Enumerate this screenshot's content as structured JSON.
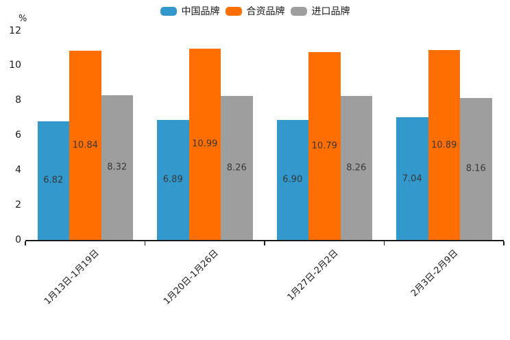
{
  "chart_data": {
    "type": "bar",
    "title": "",
    "unit_label": "%",
    "categories": [
      "1月13日-1月19日",
      "1月20日-1月26日",
      "1月27日-2月2日",
      "2月3日-2月9日"
    ],
    "series": [
      {
        "name": "中国品牌",
        "color": "#3398CC",
        "values": [
          6.82,
          6.89,
          6.9,
          7.04
        ]
      },
      {
        "name": "合资品牌",
        "color": "#FF6E00",
        "values": [
          10.84,
          10.99,
          10.79,
          10.89
        ]
      },
      {
        "name": "进口品牌",
        "color": "#9E9E9E",
        "values": [
          8.32,
          8.26,
          8.26,
          8.16
        ]
      }
    ],
    "ylim": [
      0,
      12
    ],
    "yticks": [
      0,
      2,
      4,
      6,
      8,
      10,
      12
    ],
    "value_labels": "inside-center",
    "value_label_color": "#373737",
    "axis_color": "#1a1a1a",
    "legend_position": "top-center",
    "grid": false,
    "x_label_rotation": 45
  }
}
